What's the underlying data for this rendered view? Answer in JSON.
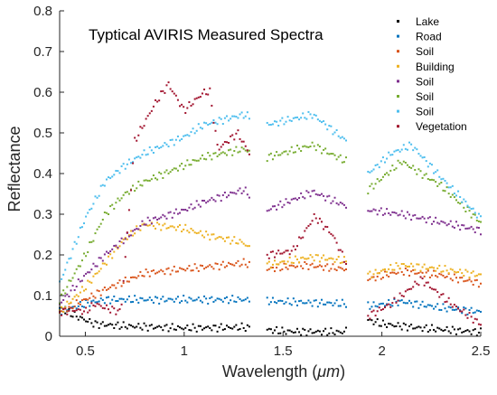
{
  "chart_data": {
    "type": "scatter",
    "title": "Typtical AVIRIS Measured Spectra",
    "xlabel_main": "Wavelength (",
    "xlabel_unit": "μm",
    "xlabel_close": ")",
    "ylabel": "Reflectance",
    "xlim": [
      0.37,
      2.5
    ],
    "ylim": [
      0,
      0.8
    ],
    "xticks": [
      0.5,
      1,
      1.5,
      2,
      2.5
    ],
    "xtick_labels": [
      "0.5",
      "1",
      "1.5",
      "2",
      "2.5"
    ],
    "yticks": [
      0,
      0.1,
      0.2,
      0.3,
      0.4,
      0.5,
      0.6,
      0.7,
      0.8
    ],
    "ytick_labels": [
      "0",
      "0.1",
      "0.2",
      "0.3",
      "0.4",
      "0.5",
      "0.6",
      "0.7",
      "0.8"
    ],
    "grid": false,
    "legend_position": "top-right",
    "segments": [
      [
        0.37,
        1.33
      ],
      [
        1.42,
        1.82
      ],
      [
        1.93,
        2.5
      ]
    ],
    "series": [
      {
        "name": "Lake",
        "color": "#000000",
        "keypoints": [
          [
            0.37,
            0.07
          ],
          [
            0.45,
            0.05
          ],
          [
            0.55,
            0.03
          ],
          [
            0.7,
            0.025
          ],
          [
            1.0,
            0.02
          ],
          [
            1.3,
            0.022
          ],
          [
            1.5,
            0.012
          ],
          [
            1.8,
            0.01
          ],
          [
            1.93,
            0.04
          ],
          [
            2.0,
            0.03
          ],
          [
            2.2,
            0.02
          ],
          [
            2.5,
            0.01
          ]
        ]
      },
      {
        "name": "Road",
        "color": "#0072BD",
        "keypoints": [
          [
            0.37,
            0.06
          ],
          [
            0.5,
            0.08
          ],
          [
            0.6,
            0.09
          ],
          [
            1.0,
            0.09
          ],
          [
            1.3,
            0.09
          ],
          [
            1.5,
            0.085
          ],
          [
            1.8,
            0.08
          ],
          [
            1.95,
            0.075
          ],
          [
            2.1,
            0.085
          ],
          [
            2.3,
            0.07
          ],
          [
            2.5,
            0.06
          ]
        ]
      },
      {
        "name": "Soil",
        "color": "#D95319",
        "keypoints": [
          [
            0.37,
            0.06
          ],
          [
            0.5,
            0.09
          ],
          [
            0.6,
            0.115
          ],
          [
            0.7,
            0.135
          ],
          [
            0.8,
            0.155
          ],
          [
            1.0,
            0.165
          ],
          [
            1.3,
            0.18
          ],
          [
            1.42,
            0.165
          ],
          [
            1.6,
            0.175
          ],
          [
            1.82,
            0.165
          ],
          [
            1.93,
            0.14
          ],
          [
            2.1,
            0.16
          ],
          [
            2.3,
            0.15
          ],
          [
            2.5,
            0.13
          ]
        ]
      },
      {
        "name": "Building",
        "color": "#EDB120",
        "keypoints": [
          [
            0.37,
            0.06
          ],
          [
            0.5,
            0.12
          ],
          [
            0.6,
            0.18
          ],
          [
            0.7,
            0.24
          ],
          [
            0.8,
            0.275
          ],
          [
            1.0,
            0.265
          ],
          [
            1.1,
            0.25
          ],
          [
            1.3,
            0.23
          ],
          [
            1.42,
            0.175
          ],
          [
            1.65,
            0.195
          ],
          [
            1.82,
            0.185
          ],
          [
            1.93,
            0.15
          ],
          [
            2.1,
            0.175
          ],
          [
            2.3,
            0.165
          ],
          [
            2.5,
            0.15
          ]
        ]
      },
      {
        "name": "Soil",
        "color": "#7E2F8E",
        "keypoints": [
          [
            0.37,
            0.08
          ],
          [
            0.5,
            0.15
          ],
          [
            0.6,
            0.2
          ],
          [
            0.7,
            0.24
          ],
          [
            0.8,
            0.28
          ],
          [
            1.0,
            0.31
          ],
          [
            1.1,
            0.33
          ],
          [
            1.3,
            0.36
          ],
          [
            1.42,
            0.31
          ],
          [
            1.65,
            0.355
          ],
          [
            1.82,
            0.32
          ],
          [
            1.93,
            0.31
          ],
          [
            2.1,
            0.3
          ],
          [
            2.3,
            0.28
          ],
          [
            2.5,
            0.26
          ]
        ]
      },
      {
        "name": "Soil",
        "color": "#77AC30",
        "keypoints": [
          [
            0.37,
            0.09
          ],
          [
            0.5,
            0.2
          ],
          [
            0.6,
            0.3
          ],
          [
            0.7,
            0.35
          ],
          [
            0.8,
            0.38
          ],
          [
            1.0,
            0.42
          ],
          [
            1.1,
            0.44
          ],
          [
            1.3,
            0.46
          ],
          [
            1.42,
            0.44
          ],
          [
            1.65,
            0.47
          ],
          [
            1.82,
            0.43
          ],
          [
            1.93,
            0.36
          ],
          [
            2.1,
            0.43
          ],
          [
            2.3,
            0.37
          ],
          [
            2.5,
            0.28
          ]
        ]
      },
      {
        "name": "Soil",
        "color": "#4DBEEE",
        "keypoints": [
          [
            0.37,
            0.13
          ],
          [
            0.5,
            0.29
          ],
          [
            0.6,
            0.38
          ],
          [
            0.7,
            0.42
          ],
          [
            0.8,
            0.45
          ],
          [
            1.0,
            0.49
          ],
          [
            1.1,
            0.52
          ],
          [
            1.3,
            0.545
          ],
          [
            1.42,
            0.52
          ],
          [
            1.65,
            0.545
          ],
          [
            1.82,
            0.48
          ],
          [
            1.93,
            0.4
          ],
          [
            2.05,
            0.45
          ],
          [
            2.15,
            0.47
          ],
          [
            2.3,
            0.39
          ],
          [
            2.5,
            0.29
          ]
        ]
      },
      {
        "name": "Vegetation",
        "color": "#A2142F",
        "keypoints": [
          [
            0.37,
            0.06
          ],
          [
            0.45,
            0.065
          ],
          [
            0.5,
            0.06
          ],
          [
            0.55,
            0.08
          ],
          [
            0.6,
            0.07
          ],
          [
            0.68,
            0.06
          ],
          [
            0.75,
            0.48
          ],
          [
            0.85,
            0.57
          ],
          [
            0.92,
            0.62
          ],
          [
            1.0,
            0.555
          ],
          [
            1.1,
            0.6
          ],
          [
            1.13,
            0.6
          ],
          [
            1.17,
            0.46
          ],
          [
            1.27,
            0.5
          ],
          [
            1.33,
            0.45
          ],
          [
            1.42,
            0.2
          ],
          [
            1.55,
            0.21
          ],
          [
            1.66,
            0.295
          ],
          [
            1.75,
            0.25
          ],
          [
            1.82,
            0.18
          ],
          [
            1.93,
            0.05
          ],
          [
            2.05,
            0.08
          ],
          [
            2.2,
            0.14
          ],
          [
            2.35,
            0.08
          ],
          [
            2.5,
            0.03
          ]
        ]
      }
    ]
  }
}
